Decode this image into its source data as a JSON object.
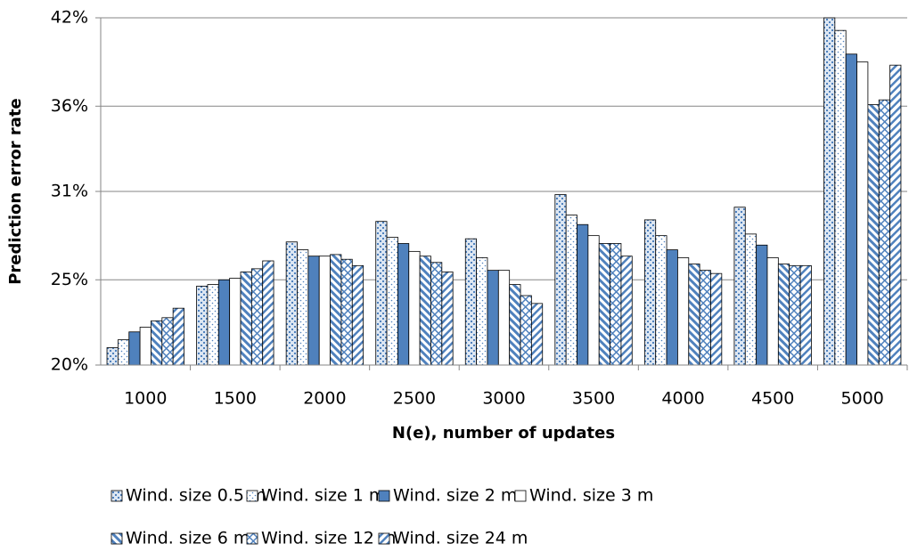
{
  "chart_data": {
    "type": "bar",
    "y_label": "Prediction error rate",
    "x_label": "N(e), number of updates",
    "categories": [
      "1000",
      "1500",
      "2000",
      "2500",
      "3000",
      "3500",
      "4000",
      "4500",
      "5000"
    ],
    "series": [
      {
        "name": "Wind. size 0.5 m",
        "color": "#4f81bd",
        "pattern": "checker",
        "values": [
          21.1,
          25.0,
          27.8,
          29.1,
          28.0,
          30.8,
          29.2,
          30.0,
          42.0
        ]
      },
      {
        "name": "Wind. size 1 m",
        "color": "#4f81bd",
        "pattern": "dots",
        "values": [
          21.6,
          25.1,
          27.3,
          28.1,
          26.8,
          29.5,
          28.2,
          28.3,
          41.2
        ]
      },
      {
        "name": "Wind. size 2 m",
        "color": "#4f81bd",
        "pattern": "solid",
        "values": [
          22.1,
          25.4,
          26.9,
          27.7,
          26.0,
          28.9,
          27.3,
          27.6,
          39.7
        ]
      },
      {
        "name": "Wind. size 3 m",
        "color": "#ffffff",
        "pattern": "solid",
        "values": [
          22.4,
          25.5,
          26.9,
          27.2,
          26.0,
          28.2,
          26.8,
          26.8,
          39.2
        ]
      },
      {
        "name": "Wind. size 6 m",
        "color": "#4f81bd",
        "pattern": "wide-diagonal",
        "values": [
          22.8,
          25.9,
          27.0,
          26.9,
          25.1,
          27.7,
          26.4,
          26.4,
          36.5
        ]
      },
      {
        "name": "Wind. size 12 m",
        "color": "#4f81bd",
        "pattern": "cross",
        "values": [
          23.0,
          26.1,
          26.7,
          26.5,
          24.4,
          27.7,
          26.0,
          26.3,
          36.8
        ]
      },
      {
        "name": "Wind. size 24 m",
        "color": "#4f81bd",
        "pattern": "diagonal",
        "values": [
          23.6,
          26.6,
          26.3,
          25.9,
          23.9,
          26.9,
          25.8,
          26.3,
          39.0
        ]
      }
    ],
    "ylim": [
      20,
      42
    ],
    "yticks": [
      {
        "value": 20,
        "label": "20%"
      },
      {
        "value": 25.4,
        "label": "25%"
      },
      {
        "value": 31,
        "label": "31%"
      },
      {
        "value": 36.4,
        "label": "36%"
      },
      {
        "value": 42,
        "label": "42%"
      }
    ],
    "grid": true
  }
}
